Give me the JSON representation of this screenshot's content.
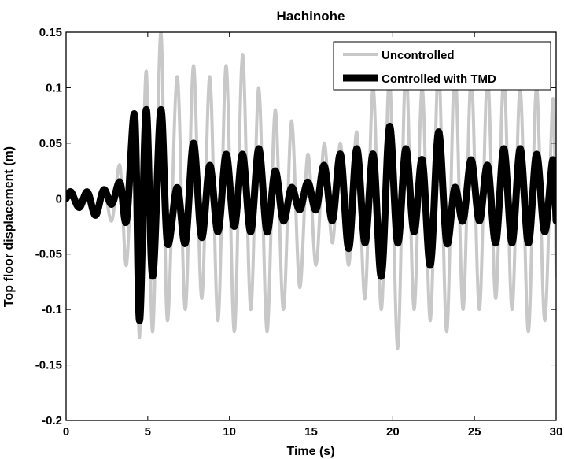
{
  "chart_data": {
    "type": "line",
    "title": "Hachinohe",
    "xlabel": "Time (s)",
    "ylabel": "Top floor displacement (m)",
    "xlim": [
      0,
      30
    ],
    "ylim": [
      -0.2,
      0.15
    ],
    "xticks": [
      0,
      5,
      10,
      15,
      20,
      25,
      30
    ],
    "xtick_labels": [
      "0",
      "5",
      "10",
      "15",
      "20",
      "25",
      "30"
    ],
    "yticks": [
      -0.2,
      -0.15,
      -0.1,
      -0.05,
      0,
      0.05,
      0.1,
      0.15
    ],
    "ytick_labels": [
      "-0.2",
      "-0.15",
      "-0.1",
      "-0.05",
      "0",
      "0.05",
      "0.1",
      "0.15"
    ],
    "grid": false,
    "legend_position": "top-right",
    "series": [
      {
        "name": "Uncontrolled",
        "color": "#c8c8c8",
        "line_width": "thin",
        "x": [
          0,
          0.3,
          0.8,
          1.3,
          1.8,
          2.3,
          2.8,
          3.3,
          3.7,
          4.2,
          4.5,
          4.9,
          5.3,
          5.8,
          6.2,
          6.8,
          7.3,
          7.8,
          8.3,
          8.8,
          9.3,
          9.8,
          10.3,
          10.8,
          11.3,
          11.8,
          12.3,
          12.8,
          13.3,
          13.8,
          14.3,
          14.8,
          15.3,
          15.8,
          16.3,
          16.8,
          17.3,
          17.8,
          18.3,
          18.8,
          19.3,
          19.8,
          20.3,
          20.8,
          21.3,
          21.8,
          22.3,
          22.8,
          23.3,
          23.8,
          24.3,
          24.8,
          25.3,
          25.8,
          26.3,
          26.8,
          27.3,
          27.8,
          28.3,
          28.8,
          29.3,
          29.8,
          30
        ],
        "y": [
          0.0,
          0.008,
          -0.01,
          0.008,
          -0.015,
          0.01,
          -0.02,
          0.03,
          -0.06,
          0.07,
          -0.125,
          0.115,
          -0.12,
          0.15,
          -0.11,
          0.11,
          -0.1,
          0.12,
          -0.09,
          0.11,
          -0.11,
          0.12,
          -0.12,
          0.13,
          -0.1,
          0.1,
          -0.12,
          0.08,
          -0.1,
          0.07,
          -0.08,
          0.04,
          -0.06,
          0.05,
          -0.04,
          0.05,
          -0.06,
          0.06,
          -0.09,
          0.1,
          -0.1,
          0.11,
          -0.135,
          0.12,
          -0.1,
          0.1,
          -0.11,
          0.12,
          -0.12,
          0.12,
          -0.1,
          0.11,
          -0.1,
          0.11,
          -0.09,
          0.11,
          -0.1,
          0.1,
          -0.12,
          0.1,
          -0.11,
          0.09,
          -0.07
        ]
      },
      {
        "name": "Controlled with TMD",
        "color": "#000000",
        "line_width": "thick",
        "x": [
          0,
          0.3,
          0.8,
          1.3,
          1.8,
          2.3,
          2.8,
          3.3,
          3.7,
          4.2,
          4.5,
          4.9,
          5.3,
          5.8,
          6.2,
          6.8,
          7.3,
          7.8,
          8.3,
          8.8,
          9.3,
          9.8,
          10.3,
          10.8,
          11.3,
          11.8,
          12.3,
          12.8,
          13.3,
          13.8,
          14.3,
          14.8,
          15.3,
          15.8,
          16.3,
          16.8,
          17.3,
          17.8,
          18.3,
          18.8,
          19.3,
          19.8,
          20.3,
          20.8,
          21.3,
          21.8,
          22.3,
          22.8,
          23.3,
          23.8,
          24.3,
          24.8,
          25.3,
          25.8,
          26.3,
          26.8,
          27.3,
          27.8,
          28.3,
          28.8,
          29.3,
          29.8,
          30
        ],
        "y": [
          0.0,
          0.006,
          -0.008,
          0.006,
          -0.015,
          0.008,
          -0.005,
          0.015,
          -0.02,
          0.075,
          -0.11,
          0.08,
          -0.07,
          0.08,
          -0.04,
          0.01,
          -0.04,
          0.05,
          -0.035,
          0.03,
          -0.03,
          0.04,
          -0.025,
          0.04,
          -0.03,
          0.045,
          -0.03,
          0.025,
          -0.02,
          0.01,
          -0.01,
          0.015,
          -0.01,
          0.03,
          -0.02,
          0.04,
          -0.045,
          0.045,
          -0.04,
          0.04,
          -0.07,
          0.065,
          -0.04,
          0.045,
          -0.03,
          0.035,
          -0.06,
          0.06,
          -0.04,
          0.01,
          -0.02,
          0.035,
          -0.02,
          0.03,
          -0.04,
          0.045,
          -0.04,
          0.045,
          -0.04,
          0.04,
          -0.03,
          0.035,
          -0.02
        ]
      }
    ]
  }
}
